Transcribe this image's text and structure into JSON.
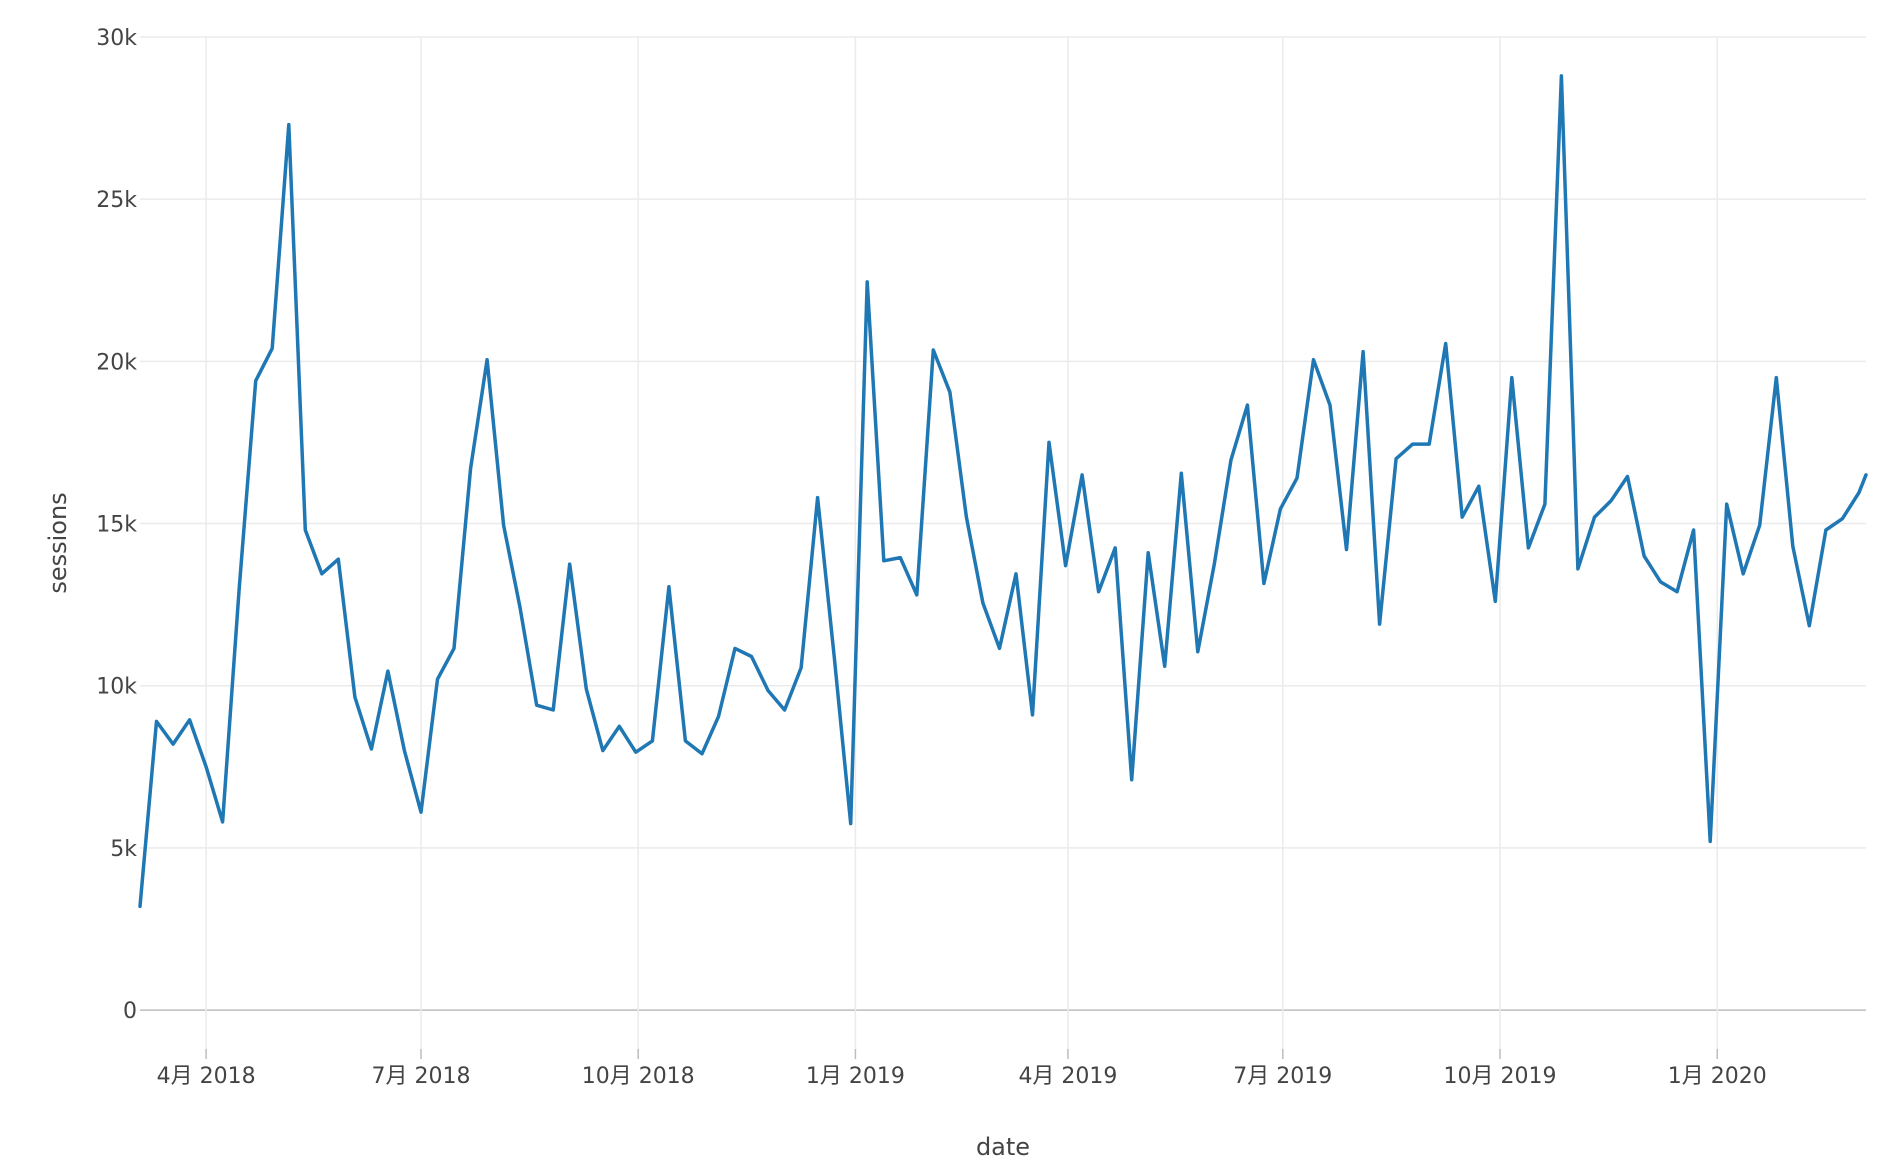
{
  "colors": {
    "series": "#1f77b4",
    "grid": "#ebebeb",
    "axis": "#bdbdbd",
    "text": "#444444"
  },
  "chart_data": {
    "type": "line",
    "title": "",
    "xlabel": "date",
    "ylabel": "sessions",
    "grid": true,
    "legend": "none",
    "xlim": [
      "2018-03-04",
      "2020-03-04"
    ],
    "ylim": [
      -1200,
      30000
    ],
    "y_ticks": [
      0,
      5000,
      10000,
      15000,
      20000,
      25000,
      30000
    ],
    "y_tick_labels": [
      "0",
      "5k",
      "10k",
      "15k",
      "20k",
      "25k",
      "30k"
    ],
    "x_ticks": [
      "2018-04-01",
      "2018-07-01",
      "2018-10-01",
      "2019-01-01",
      "2019-04-01",
      "2019-07-01",
      "2019-10-01",
      "2020-01-01"
    ],
    "x_tick_labels": [
      "4月 2018",
      "7月 2018",
      "10月 2018",
      "1月 2019",
      "4月 2019",
      "7月 2019",
      "10月 2019",
      "1月 2020"
    ],
    "series": [
      {
        "x": [
          "2018-03-04",
          "2018-03-11",
          "2018-03-18",
          "2018-03-25",
          "2018-04-01",
          "2018-04-08",
          "2018-04-15",
          "2018-04-22",
          "2018-04-29",
          "2018-05-06",
          "2018-05-13",
          "2018-05-20",
          "2018-05-27",
          "2018-06-03",
          "2018-06-10",
          "2018-06-17",
          "2018-06-24",
          "2018-07-01",
          "2018-07-08",
          "2018-07-15",
          "2018-07-22",
          "2018-07-29",
          "2018-08-05",
          "2018-08-12",
          "2018-08-19",
          "2018-08-26",
          "2018-09-02",
          "2018-09-09",
          "2018-09-16",
          "2018-09-23",
          "2018-09-30",
          "2018-10-07",
          "2018-10-14",
          "2018-10-21",
          "2018-10-28",
          "2018-11-04",
          "2018-11-11",
          "2018-11-18",
          "2018-11-25",
          "2018-12-02",
          "2018-12-09",
          "2018-12-16",
          "2018-12-23",
          "2018-12-30",
          "2019-01-06",
          "2019-01-13",
          "2019-01-20",
          "2019-01-27",
          "2019-02-03",
          "2019-02-10",
          "2019-02-17",
          "2019-02-24",
          "2019-03-03",
          "2019-03-10",
          "2019-03-17",
          "2019-03-24",
          "2019-03-31",
          "2019-04-07",
          "2019-04-14",
          "2019-04-21",
          "2019-04-28",
          "2019-05-05",
          "2019-05-12",
          "2019-05-19",
          "2019-05-26",
          "2019-06-02",
          "2019-06-09",
          "2019-06-16",
          "2019-06-23",
          "2019-06-30",
          "2019-07-07",
          "2019-07-14",
          "2019-07-21",
          "2019-07-28",
          "2019-08-04",
          "2019-08-11",
          "2019-08-18",
          "2019-08-25",
          "2019-09-01",
          "2019-09-08",
          "2019-09-15",
          "2019-09-22",
          "2019-09-29",
          "2019-10-06",
          "2019-10-13",
          "2019-10-20",
          "2019-10-27",
          "2019-11-03",
          "2019-11-10",
          "2019-11-17",
          "2019-11-24",
          "2019-12-01",
          "2019-12-08",
          "2019-12-15",
          "2019-12-22",
          "2019-12-29",
          "2020-01-05",
          "2020-01-12",
          "2020-01-19",
          "2020-01-26",
          "2020-02-02",
          "2020-02-09",
          "2020-02-16",
          "2020-02-23",
          "2020-03-01",
          "2020-03-04"
        ],
        "y": [
          3200,
          8900,
          8200,
          8950,
          7500,
          5800,
          13000,
          19400,
          20400,
          27300,
          14800,
          13450,
          13900,
          9650,
          8050,
          10450,
          8000,
          6100,
          10200,
          11150,
          16700,
          20050,
          14950,
          12400,
          9400,
          9250,
          13750,
          9900,
          8000,
          8750,
          7950,
          8300,
          13050,
          8300,
          7900,
          9050,
          11150,
          10900,
          9850,
          9250,
          10550,
          15800,
          10900,
          5750,
          22450,
          13850,
          13950,
          12800,
          20350,
          19050,
          15200,
          12550,
          11150,
          13450,
          9100,
          17500,
          13700,
          16500,
          12900,
          14250,
          7100,
          14100,
          10600,
          16550,
          11050,
          13750,
          16950,
          18650,
          13150,
          15450,
          16400,
          20050,
          18650,
          14200,
          20300,
          11900,
          17000,
          17450,
          17450,
          20550,
          15200,
          16150,
          12600,
          19500,
          14250,
          15600,
          28800,
          13600,
          15200,
          15700,
          16450,
          14000,
          13200,
          12900,
          14800,
          5200,
          15600,
          13450,
          14950,
          19500,
          14300,
          11850,
          14800,
          15150,
          15950,
          16500
        ]
      }
    ]
  }
}
